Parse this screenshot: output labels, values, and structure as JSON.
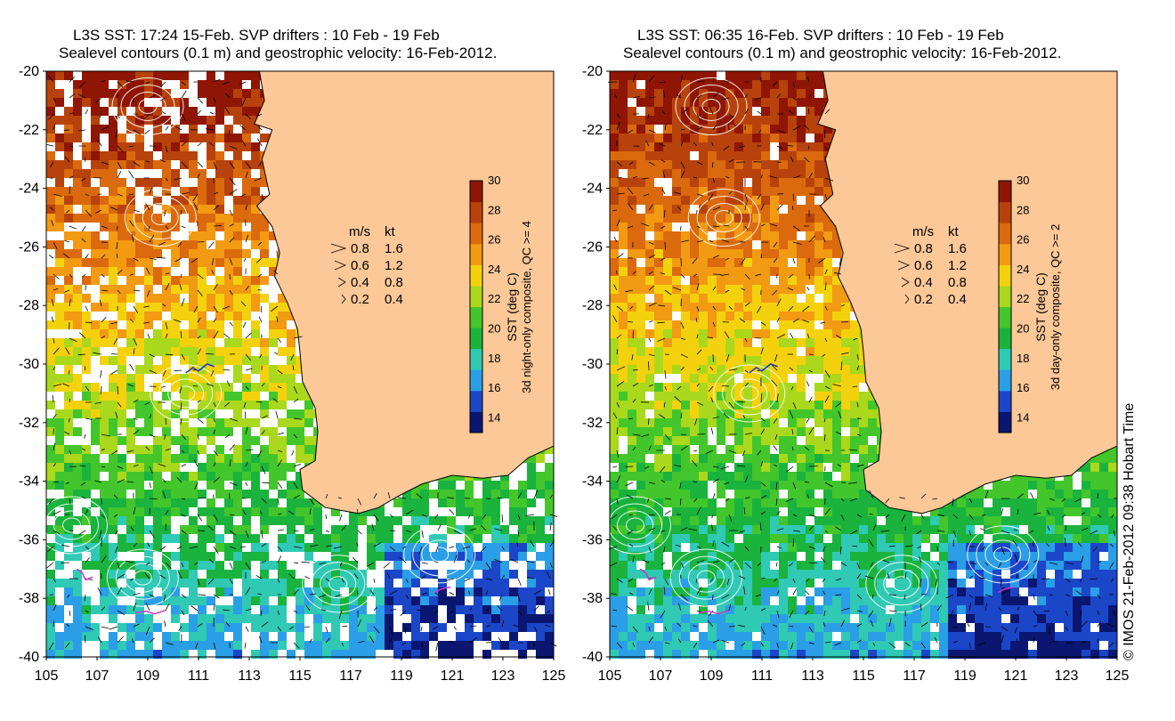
{
  "panels": [
    {
      "title_line1": "L3S SST: 17:24 15-Feb. SVP drifters : 10 Feb - 19 Feb",
      "title_line2": "Sealevel contours (0.1 m) and geostrophic velocity: 16-Feb-2012.",
      "colorbar_label_1": "SST (deg C)",
      "colorbar_label_2": "3d night-only composite, QC >= 4"
    },
    {
      "title_line1": "L3S SST: 06:35 16-Feb. SVP drifters : 10 Feb - 19 Feb",
      "title_line2": "Sealevel contours (0.1 m) and geostrophic velocity: 16-Feb-2012.",
      "colorbar_label_1": "SST (deg C)",
      "colorbar_label_2": "3d day-only composite, QC >= 2"
    }
  ],
  "axes": {
    "x_ticks": [
      "105",
      "107",
      "109",
      "111",
      "113",
      "115",
      "117",
      "119",
      "121",
      "123",
      "125"
    ],
    "y_ticks": [
      "-20",
      "-22",
      "-24",
      "-26",
      "-28",
      "-30",
      "-32",
      "-34",
      "-36",
      "-38",
      "-40"
    ],
    "lon_range": [
      105,
      125
    ],
    "lat_range": [
      -40,
      -20
    ]
  },
  "colorbar": {
    "ticks": [
      "30",
      "28",
      "26",
      "24",
      "22",
      "20",
      "18",
      "16",
      "14"
    ],
    "range": [
      13,
      30
    ],
    "colors": [
      "#0a1670",
      "#1b46c8",
      "#2a9ee6",
      "#2fc9b4",
      "#19b33e",
      "#43c62b",
      "#a9d81c",
      "#f3d20d",
      "#f29a12",
      "#da6a0d",
      "#b8420b",
      "#8f1505"
    ]
  },
  "velocity_legend": {
    "header_ms": "m/s",
    "header_kt": "kt",
    "rows": [
      {
        "ms": "0.8",
        "kt": "1.6"
      },
      {
        "ms": "0.6",
        "kt": "1.2"
      },
      {
        "ms": "0.4",
        "kt": "0.8"
      },
      {
        "ms": "0.2",
        "kt": "0.4"
      }
    ]
  },
  "credit": "© IMOS 21-Feb-2012 09:38 Hobart Time",
  "colors": {
    "land": "#fcc898",
    "contour": "#ffffff",
    "arrow": "#000000",
    "drifter_magenta": "#cc33cc",
    "drifter_blue": "#2233cc"
  }
}
